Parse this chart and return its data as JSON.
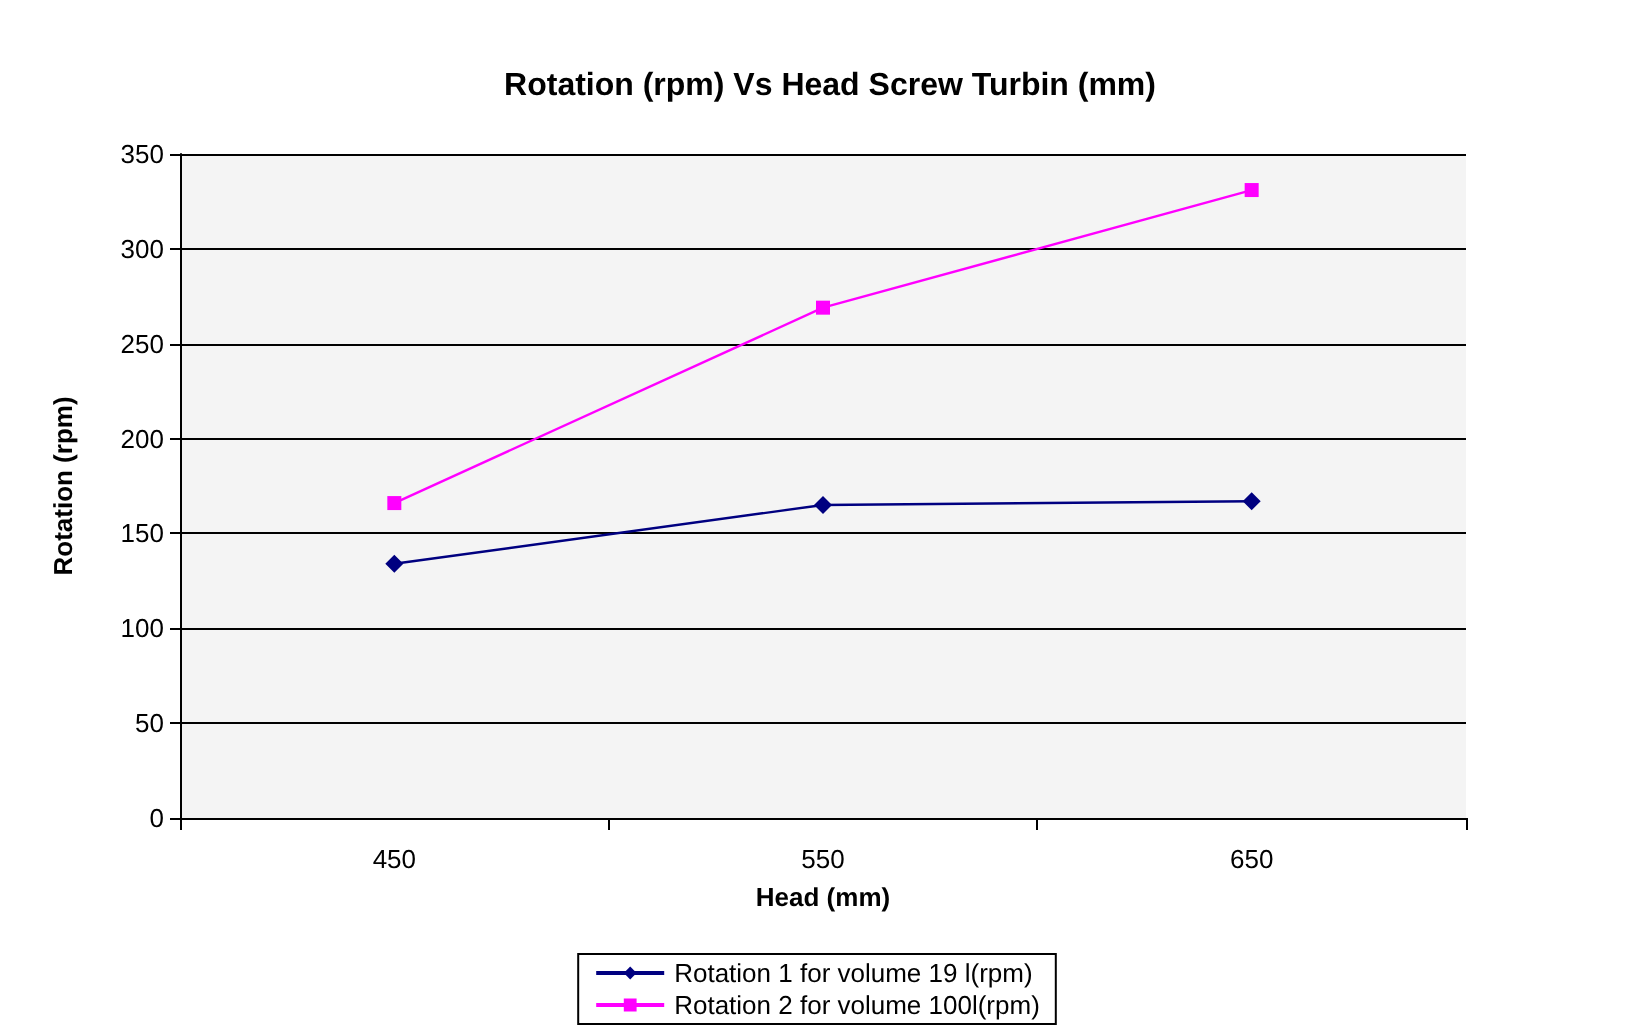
{
  "chart_data": {
    "type": "line",
    "title": "Rotation (rpm) Vs Head Screw Turbin (mm)",
    "xlabel": "Head (mm)",
    "ylabel": "Rotation (rpm)",
    "categories": [
      "450",
      "550",
      "650"
    ],
    "series": [
      {
        "name": "Rotation 1 for volume 19 l(rpm)",
        "color": "#000080",
        "values": [
          134,
          165,
          167
        ],
        "marker": "diamond"
      },
      {
        "name": "Rotation 2 for volume 100l(rpm)",
        "color": "#ff00ff",
        "values": [
          166,
          269,
          331
        ],
        "marker": "square"
      }
    ],
    "ylim": [
      0,
      350
    ],
    "yticks": [
      0,
      50,
      100,
      150,
      200,
      250,
      300,
      350
    ],
    "grid": "y",
    "legend": "bottom"
  }
}
